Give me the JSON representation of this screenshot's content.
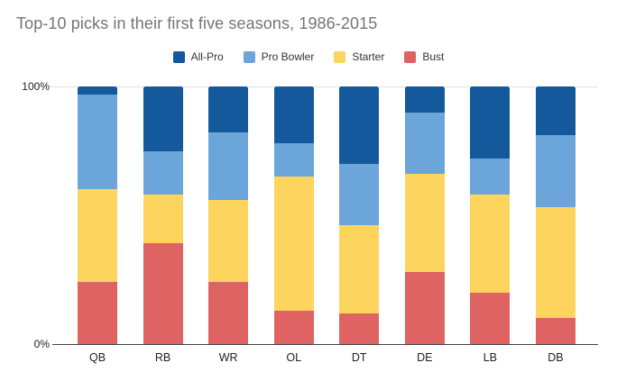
{
  "chart_data": {
    "type": "bar",
    "stacked": true,
    "stack_unit": "%",
    "title": "Top-10 picks in their first five seasons, 1986-2015",
    "legend_position": "top-center",
    "categories": [
      "QB",
      "RB",
      "WR",
      "OL",
      "DT",
      "DE",
      "LB",
      "DB"
    ],
    "series": [
      {
        "name": "All-Pro",
        "color": "#15599d",
        "values": [
          3,
          25,
          18,
          22,
          30,
          10,
          28,
          19
        ]
      },
      {
        "name": "Pro Bowler",
        "color": "#6ba5d9",
        "values": [
          37,
          17,
          26,
          13,
          24,
          24,
          14,
          28
        ]
      },
      {
        "name": "Starter",
        "color": "#fdd45e",
        "values": [
          36,
          19,
          32,
          52,
          34,
          38,
          38,
          43
        ]
      },
      {
        "name": "Bust",
        "color": "#e06363",
        "values": [
          24,
          39,
          24,
          13,
          12,
          28,
          20,
          10
        ]
      }
    ],
    "stack_order_top_to_bottom": [
      "All-Pro",
      "Pro Bowler",
      "Starter",
      "Bust"
    ],
    "y_axis": {
      "min": 0,
      "max": 100,
      "ticks": [
        "100%",
        "0%"
      ],
      "gridlines_shown": [
        "100%"
      ]
    }
  },
  "colors": {
    "background": "#ffffff",
    "title_text": "#757575",
    "axis_text": "#222222",
    "legend_text": "#333333",
    "baseline": "#424242",
    "gridline": "#e0e0e0"
  }
}
